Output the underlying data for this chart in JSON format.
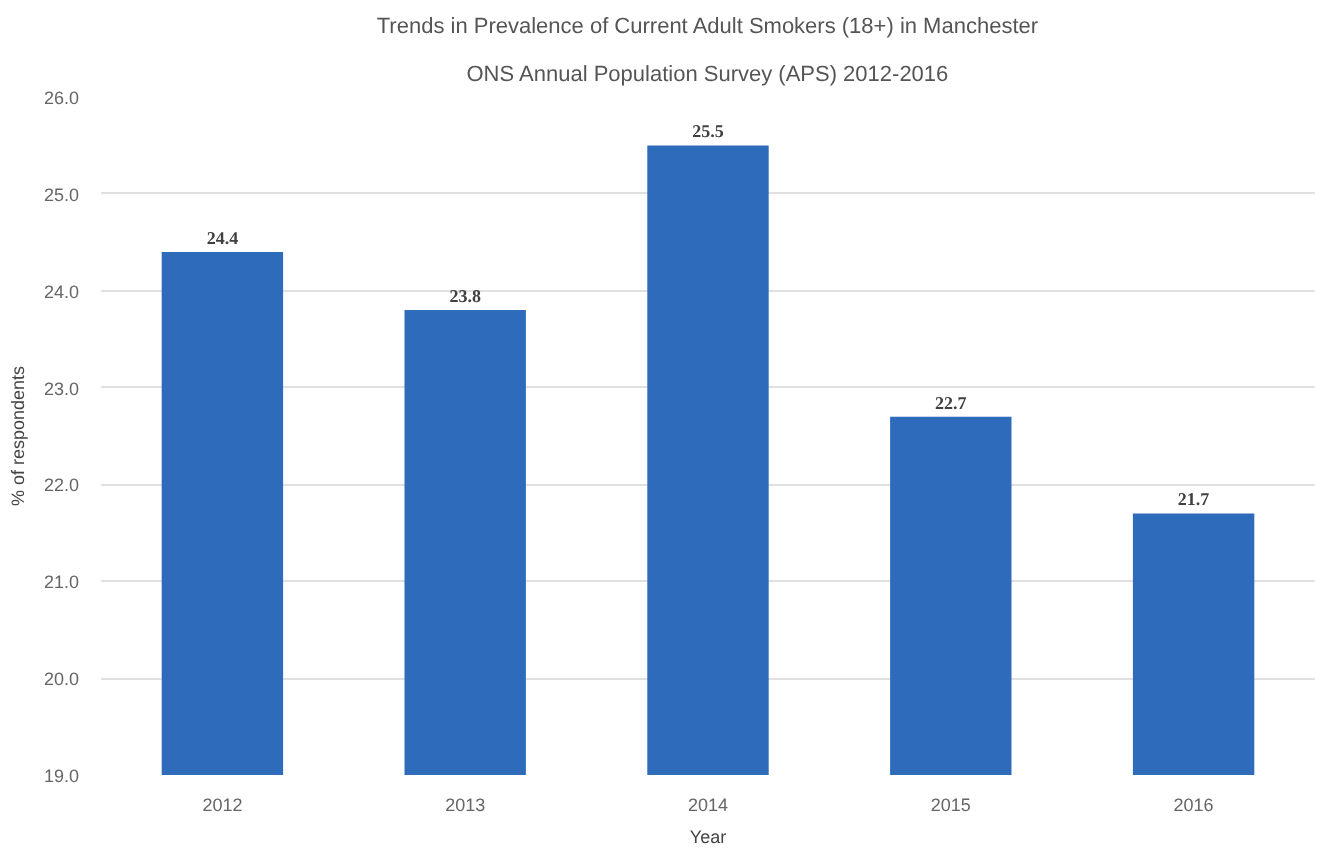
{
  "chart_data": {
    "type": "bar",
    "title": "Trends in Prevalence of Current Adult Smokers (18+) in Manchester",
    "subtitle": "ONS Annual Population Survey (APS) 2012-2016",
    "xlabel": "Year",
    "ylabel": "% of respondents",
    "categories": [
      "2012",
      "2013",
      "2014",
      "2015",
      "2016"
    ],
    "values": [
      24.4,
      23.8,
      25.5,
      22.7,
      21.7
    ],
    "color": "#2e6bba",
    "data_labels": true,
    "ylim": [
      19,
      26
    ],
    "yticks": [
      {
        "value": 19,
        "label": "19.0"
      },
      {
        "value": 20,
        "label": "20.0"
      },
      {
        "value": 21,
        "label": "21.0"
      },
      {
        "value": 22,
        "label": "22.0"
      },
      {
        "value": 23,
        "label": "23.0"
      },
      {
        "value": 24,
        "label": "24.0"
      },
      {
        "value": 25,
        "label": "25.0"
      },
      {
        "value": 26,
        "label": "26.0"
      }
    ],
    "grid": "y"
  }
}
